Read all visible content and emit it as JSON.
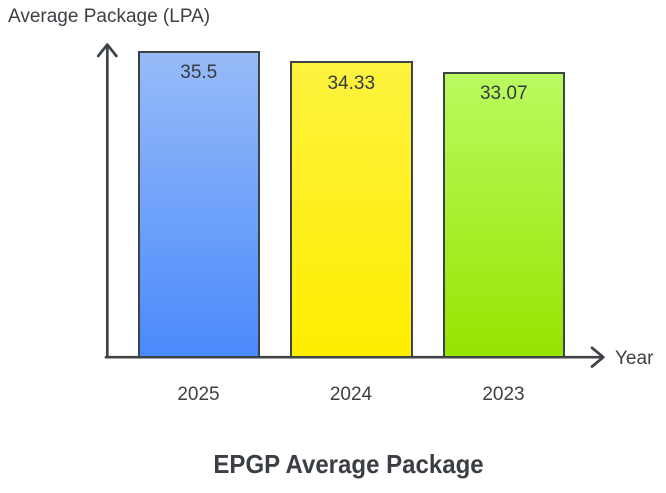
{
  "chart_data": {
    "type": "bar",
    "title": "EPGP Average Package",
    "xlabel": "Year",
    "ylabel": "Average Package (LPA)",
    "categories": [
      "2025",
      "2024",
      "2023"
    ],
    "values": [
      35.5,
      34.33,
      33.07
    ],
    "bar_labels": [
      "35.5",
      "34.33",
      "33.07"
    ],
    "ylim": [
      0,
      36.5
    ],
    "grid": false,
    "legend": "none",
    "bars": [
      {
        "category": "2025",
        "value": 35.5,
        "label": "35.5",
        "color_top": "#97bbf7",
        "color_bottom": "#4a8afc"
      },
      {
        "category": "2024",
        "value": 34.33,
        "label": "34.33",
        "color_top": "#fdf23e",
        "color_bottom": "#ffee00"
      },
      {
        "category": "2023",
        "value": 33.07,
        "label": "33.07",
        "color_top": "#b9fb5f",
        "color_bottom": "#96e400"
      }
    ],
    "colors": {
      "axis": "#3f4347",
      "bar_border": "#3e4347",
      "text": "#3c4045",
      "background": "#ffffff"
    }
  }
}
